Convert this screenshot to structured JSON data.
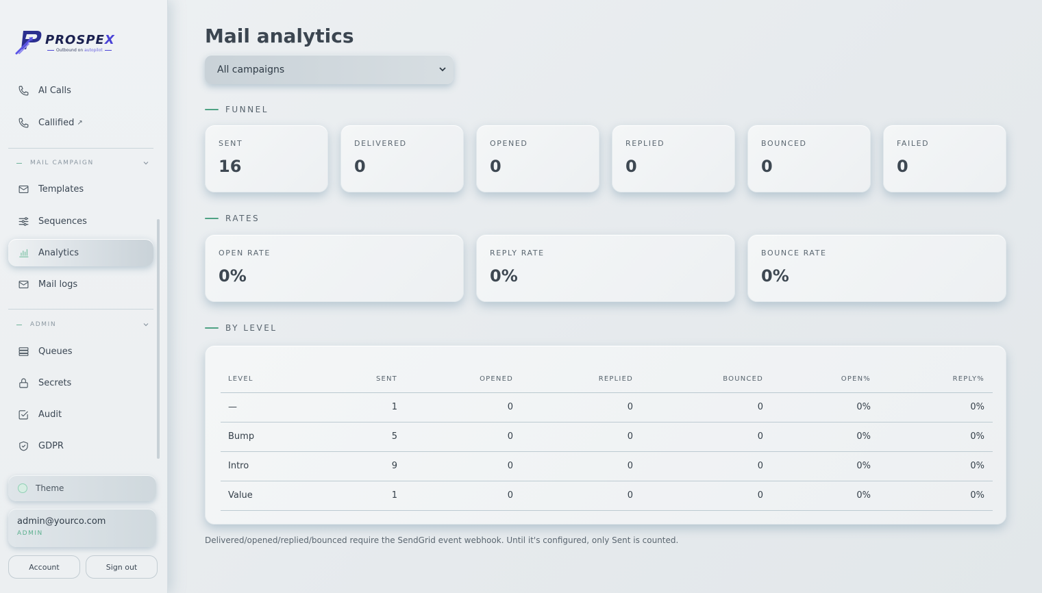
{
  "brand": {
    "name_main": "PROSPE",
    "name_x": "X",
    "tagline_main": "Outbound on ",
    "tagline_auto": "autopilot"
  },
  "sidebar": {
    "items_top": [
      {
        "label": "AI Calls",
        "icon": "phone-icon"
      },
      {
        "label": "Callified",
        "icon": "phone-icon",
        "ext": "↗"
      }
    ],
    "mail_section": {
      "title": "MAIL CAMPAIGN"
    },
    "mail_items": [
      {
        "label": "Templates",
        "icon": "mail-icon"
      },
      {
        "label": "Sequences",
        "icon": "sliders-icon"
      },
      {
        "label": "Analytics",
        "icon": "bar-chart-icon",
        "active": true
      },
      {
        "label": "Mail logs",
        "icon": "mail-icon"
      }
    ],
    "admin_section": {
      "title": "ADMIN"
    },
    "admin_items": [
      {
        "label": "Queues",
        "icon": "stack-icon"
      },
      {
        "label": "Secrets",
        "icon": "lock-icon"
      },
      {
        "label": "Audit",
        "icon": "check-square-icon"
      },
      {
        "label": "GDPR",
        "icon": "shield-check-icon"
      }
    ],
    "theme_label": "Theme",
    "user": {
      "email": "admin@yourco.com",
      "role": "ADMIN"
    },
    "account_label": "Account",
    "signout_label": "Sign out"
  },
  "main": {
    "title": "Mail analytics",
    "campaign_select": {
      "value": "All campaigns"
    },
    "funnel": {
      "title": "FUNNEL",
      "cards": [
        {
          "label": "SENT",
          "value": "16"
        },
        {
          "label": "DELIVERED",
          "value": "0"
        },
        {
          "label": "OPENED",
          "value": "0"
        },
        {
          "label": "REPLIED",
          "value": "0"
        },
        {
          "label": "BOUNCED",
          "value": "0"
        },
        {
          "label": "FAILED",
          "value": "0"
        }
      ]
    },
    "rates": {
      "title": "RATES",
      "cards": [
        {
          "label": "OPEN RATE",
          "value": "0%"
        },
        {
          "label": "REPLY RATE",
          "value": "0%"
        },
        {
          "label": "BOUNCE RATE",
          "value": "0%"
        }
      ]
    },
    "by_level": {
      "title": "BY LEVEL",
      "columns": [
        "LEVEL",
        "SENT",
        "OPENED",
        "REPLIED",
        "BOUNCED",
        "OPEN%",
        "REPLY%"
      ],
      "rows": [
        [
          "—",
          "1",
          "0",
          "0",
          "0",
          "0%",
          "0%"
        ],
        [
          "Bump",
          "5",
          "0",
          "0",
          "0",
          "0%",
          "0%"
        ],
        [
          "Intro",
          "9",
          "0",
          "0",
          "0",
          "0%",
          "0%"
        ],
        [
          "Value",
          "1",
          "0",
          "0",
          "0",
          "0%",
          "0%"
        ]
      ]
    },
    "footnote": "Delivered/opened/replied/bounced require the SendGrid event webhook. Until it's configured, only Sent is counted."
  },
  "colors": {
    "accent": "#4ea284",
    "brand": "#4a43d6",
    "brand_dark": "#1b2150"
  }
}
